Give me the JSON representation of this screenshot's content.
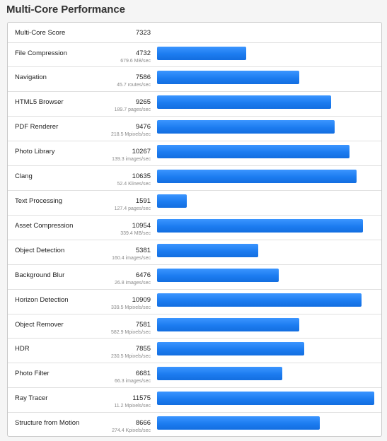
{
  "title": "Multi-Core Performance",
  "score_row": {
    "label": "Multi-Core Score",
    "value": "7323"
  },
  "max_score": 11575,
  "bar_color": "#1a7ef2",
  "rows": [
    {
      "name": "File Compression",
      "score": "4732",
      "value": 4732,
      "sub": "679.6 MB/sec"
    },
    {
      "name": "Navigation",
      "score": "7586",
      "value": 7586,
      "sub": "45.7 routes/sec"
    },
    {
      "name": "HTML5 Browser",
      "score": "9265",
      "value": 9265,
      "sub": "189.7 pages/sec"
    },
    {
      "name": "PDF Renderer",
      "score": "9476",
      "value": 9476,
      "sub": "218.5 Mpixels/sec"
    },
    {
      "name": "Photo Library",
      "score": "10267",
      "value": 10267,
      "sub": "139.3 images/sec"
    },
    {
      "name": "Clang",
      "score": "10635",
      "value": 10635,
      "sub": "52.4 Klines/sec"
    },
    {
      "name": "Text Processing",
      "score": "1591",
      "value": 1591,
      "sub": "127.4 pages/sec"
    },
    {
      "name": "Asset Compression",
      "score": "10954",
      "value": 10954,
      "sub": "339.4 MB/sec"
    },
    {
      "name": "Object Detection",
      "score": "5381",
      "value": 5381,
      "sub": "160.4 images/sec"
    },
    {
      "name": "Background Blur",
      "score": "6476",
      "value": 6476,
      "sub": "26.8 images/sec"
    },
    {
      "name": "Horizon Detection",
      "score": "10909",
      "value": 10909,
      "sub": "339.5 Mpixels/sec"
    },
    {
      "name": "Object Remover",
      "score": "7581",
      "value": 7581,
      "sub": "582.9 Mpixels/sec"
    },
    {
      "name": "HDR",
      "score": "7855",
      "value": 7855,
      "sub": "230.5 Mpixels/sec"
    },
    {
      "name": "Photo Filter",
      "score": "6681",
      "value": 6681,
      "sub": "66.3 images/sec"
    },
    {
      "name": "Ray Tracer",
      "score": "11575",
      "value": 11575,
      "sub": "11.2 Mpixels/sec"
    },
    {
      "name": "Structure from Motion",
      "score": "8666",
      "value": 8666,
      "sub": "274.4 Kpixels/sec"
    }
  ]
}
